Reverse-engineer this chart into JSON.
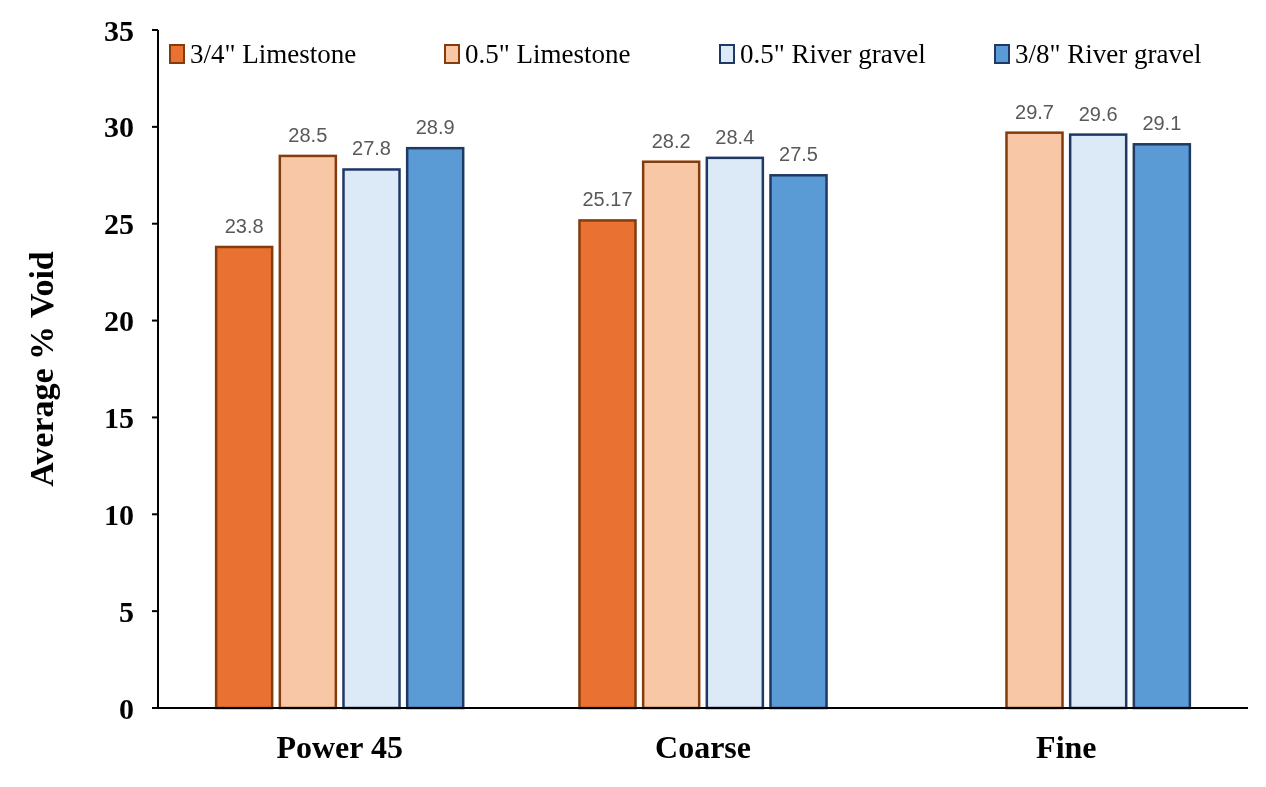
{
  "chart_data": {
    "type": "bar",
    "ylabel": "Average % Void",
    "categories": [
      "Power 45",
      "Coarse",
      "Fine"
    ],
    "series": [
      {
        "name": "3/4\" Limestone",
        "color": "#e97132",
        "values": [
          23.8,
          25.17,
          null
        ]
      },
      {
        "name": "0.5\" Limestone",
        "color": "#f7c7a6",
        "values": [
          28.5,
          28.2,
          29.7
        ]
      },
      {
        "name": "0.5\" River gravel",
        "color": "#dce9f6",
        "values": [
          27.8,
          28.4,
          29.6
        ]
      },
      {
        "name": "3/8\" River gravel",
        "color": "#5b9bd5",
        "values": [
          28.9,
          27.5,
          29.1
        ]
      }
    ],
    "ylim": [
      0,
      35
    ],
    "yticks": [
      0,
      5,
      10,
      15,
      20,
      25,
      30,
      35
    ],
    "data_labels": true,
    "legend": "top",
    "grid": false
  }
}
